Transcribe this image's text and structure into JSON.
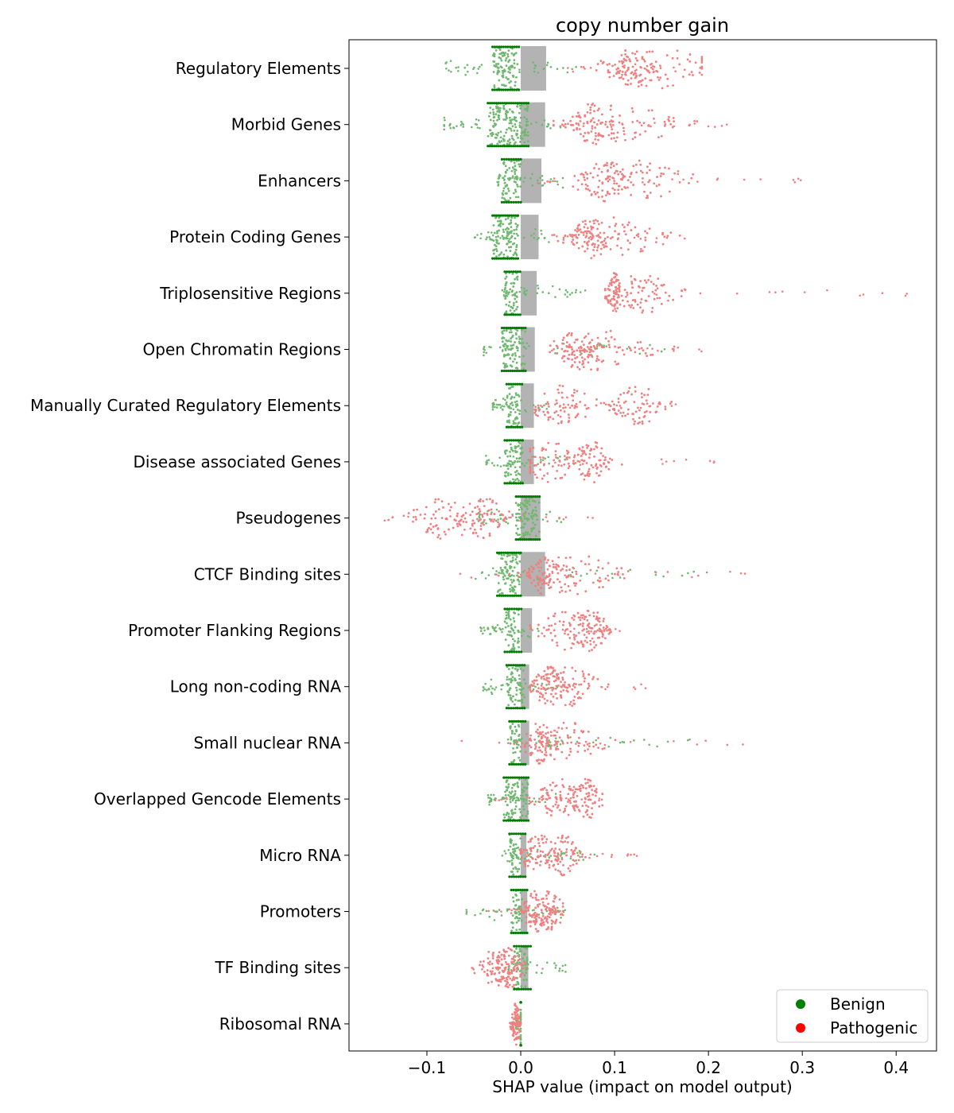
{
  "chart_data": {
    "type": "scatter",
    "subtype": "beeswarm",
    "title": "copy number gain",
    "xlabel": "SHAP value (impact on model output)",
    "ylabel": "",
    "xlim": [
      -0.183,
      0.443
    ],
    "xticks": [
      -0.1,
      0.0,
      0.1,
      0.2,
      0.3,
      0.4
    ],
    "xtick_labels": [
      "−0.1",
      "0.0",
      "0.1",
      "0.2",
      "0.3",
      "0.4"
    ],
    "grid": false,
    "legend": {
      "placement": "lower-right",
      "entries": [
        {
          "name": "Benign",
          "color": "#008000"
        },
        {
          "name": "Pathogenic",
          "color": "#ff0000"
        }
      ]
    },
    "colors": {
      "benign_point": "#6fb86f",
      "benign_core": "#007a00",
      "pathogenic_point": "#f08080",
      "pathogenic_core": "#dd0000",
      "mean_bar": "#b3b3b3"
    },
    "categories": [
      {
        "name": "Regulatory Elements",
        "mean_abs_shap": 0.027,
        "benign": {
          "core": [
            -0.03,
            -0.002
          ],
          "spread": [
            -0.08,
            0.06
          ],
          "mode": -0.015
        },
        "pathogenic": {
          "clusters": [
            [
              0.117,
              0.012
            ],
            [
              0.15,
              0.04
            ]
          ],
          "spread": [
            0.05,
            0.193
          ]
        }
      },
      {
        "name": "Morbid Genes",
        "mean_abs_shap": 0.026,
        "benign": {
          "core": [
            -0.035,
            0.008
          ],
          "spread": [
            -0.082,
            0.045
          ],
          "mode": -0.012
        },
        "pathogenic": {
          "clusters": [
            [
              0.075,
              0.012
            ],
            [
              0.11,
              0.035
            ]
          ],
          "spread": [
            0.035,
            0.22
          ]
        }
      },
      {
        "name": "Enhancers",
        "mean_abs_shap": 0.022,
        "benign": {
          "core": [
            -0.02,
            0.0
          ],
          "spread": [
            -0.025,
            0.045
          ],
          "mode": -0.01
        },
        "pathogenic": {
          "clusters": [
            [
              0.09,
              0.015
            ],
            [
              0.12,
              0.04
            ]
          ],
          "spread": [
            0.02,
            0.307
          ]
        }
      },
      {
        "name": "Protein Coding Genes",
        "mean_abs_shap": 0.019,
        "benign": {
          "core": [
            -0.03,
            -0.003
          ],
          "spread": [
            -0.05,
            0.03
          ],
          "mode": -0.015
        },
        "pathogenic": {
          "clusters": [
            [
              0.075,
              0.012
            ],
            [
              0.1,
              0.03
            ]
          ],
          "spread": [
            0.03,
            0.205
          ]
        }
      },
      {
        "name": "Triplosensitive Regions",
        "mean_abs_shap": 0.017,
        "benign": {
          "core": [
            -0.017,
            -0.003
          ],
          "spread": [
            -0.02,
            0.07
          ],
          "mode": -0.01
        },
        "pathogenic": {
          "clusters": [
            [
              0.1,
              0.005
            ],
            [
              0.13,
              0.02
            ]
          ],
          "spread": [
            0.09,
            0.415
          ]
        }
      },
      {
        "name": "Open Chromatin Regions",
        "mean_abs_shap": 0.015,
        "benign": {
          "core": [
            -0.02,
            0.005
          ],
          "spread": [
            -0.04,
            0.17
          ],
          "mode": -0.005
        },
        "pathogenic": {
          "clusters": [
            [
              0.06,
              0.012
            ],
            [
              0.08,
              0.03
            ]
          ],
          "spread": [
            0.02,
            0.2
          ]
        }
      },
      {
        "name": "Manually Curated Regulatory Elements",
        "mean_abs_shap": 0.014,
        "benign": {
          "core": [
            -0.015,
            -0.001
          ],
          "spread": [
            -0.03,
            0.03
          ],
          "mode": -0.008
        },
        "pathogenic": {
          "clusters": [
            [
              0.045,
              0.02
            ],
            [
              0.125,
              0.015
            ]
          ],
          "spread": [
            0.015,
            0.166
          ]
        }
      },
      {
        "name": "Disease associated Genes",
        "mean_abs_shap": 0.014,
        "benign": {
          "core": [
            -0.017,
            0.002
          ],
          "spread": [
            -0.037,
            0.06
          ],
          "mode": -0.008
        },
        "pathogenic": {
          "clusters": [
            [
              0.03,
              0.02
            ],
            [
              0.075,
              0.012
            ]
          ],
          "spread": [
            0.01,
            0.215
          ]
        }
      },
      {
        "name": "Pseudogenes",
        "mean_abs_shap": 0.021,
        "benign": {
          "core": [
            -0.005,
            0.02
          ],
          "spread": [
            -0.045,
            0.06
          ],
          "mode": 0.005
        },
        "pathogenic": {
          "clusters": [
            [
              -0.08,
              0.025
            ],
            [
              -0.04,
              0.015
            ]
          ],
          "spread": [
            -0.16,
            0.085
          ]
        }
      },
      {
        "name": "CTCF Binding sites",
        "mean_abs_shap": 0.026,
        "benign": {
          "core": [
            -0.025,
            0.0
          ],
          "spread": [
            -0.05,
            0.2
          ],
          "mode": -0.01
        },
        "pathogenic": {
          "clusters": [
            [
              0.025,
              0.01
            ],
            [
              0.06,
              0.03
            ]
          ],
          "spread": [
            -0.065,
            0.243
          ]
        }
      },
      {
        "name": "Promoter Flanking Regions",
        "mean_abs_shap": 0.012,
        "benign": {
          "core": [
            -0.017,
            -0.002
          ],
          "spread": [
            -0.043,
            0.02
          ],
          "mode": -0.01
        },
        "pathogenic": {
          "clusters": [
            [
              0.075,
              0.012
            ],
            [
              0.05,
              0.02
            ]
          ],
          "spread": [
            0.01,
            0.113
          ]
        }
      },
      {
        "name": "Long non-coding RNA",
        "mean_abs_shap": 0.009,
        "benign": {
          "core": [
            -0.015,
            0.004
          ],
          "spread": [
            -0.04,
            0.04
          ],
          "mode": -0.005
        },
        "pathogenic": {
          "clusters": [
            [
              0.03,
              0.01
            ],
            [
              0.05,
              0.02
            ]
          ],
          "spread": [
            0.01,
            0.138
          ]
        }
      },
      {
        "name": "Small nuclear RNA",
        "mean_abs_shap": 0.009,
        "benign": {
          "core": [
            -0.012,
            0.0
          ],
          "spread": [
            -0.02,
            0.19
          ],
          "mode": -0.006
        },
        "pathogenic": {
          "clusters": [
            [
              0.02,
              0.01
            ],
            [
              0.05,
              0.02
            ]
          ],
          "spread": [
            -0.067,
            0.243
          ]
        }
      },
      {
        "name": "Overlapped Gencode Elements",
        "mean_abs_shap": 0.008,
        "benign": {
          "core": [
            -0.018,
            0.008
          ],
          "spread": [
            -0.035,
            0.04
          ],
          "mode": -0.005
        },
        "pathogenic": {
          "clusters": [
            [
              0.04,
              0.015
            ],
            [
              0.07,
              0.01
            ]
          ],
          "spread": [
            -0.03,
            0.087
          ]
        }
      },
      {
        "name": "Micro RNA",
        "mean_abs_shap": 0.006,
        "benign": {
          "core": [
            -0.012,
            0.0
          ],
          "spread": [
            -0.02,
            0.08
          ],
          "mode": -0.006
        },
        "pathogenic": {
          "clusters": [
            [
              0.02,
              0.012
            ],
            [
              0.045,
              0.012
            ]
          ],
          "spread": [
            0.0,
            0.128
          ]
        }
      },
      {
        "name": "Promoters",
        "mean_abs_shap": 0.007,
        "benign": {
          "core": [
            -0.01,
            0.002
          ],
          "spread": [
            -0.058,
            0.048
          ],
          "mode": -0.004
        },
        "pathogenic": {
          "clusters": [
            [
              0.016,
              0.008
            ],
            [
              0.03,
              0.01
            ]
          ],
          "spread": [
            -0.04,
            0.045
          ]
        }
      },
      {
        "name": "TF Binding sites",
        "mean_abs_shap": 0.008,
        "benign": {
          "core": [
            -0.007,
            0.008
          ],
          "spread": [
            -0.015,
            0.05
          ],
          "mode": 0.0
        },
        "pathogenic": {
          "clusters": [
            [
              -0.025,
              0.012
            ],
            [
              -0.012,
              0.008
            ]
          ],
          "spread": [
            -0.053,
            0.03
          ]
        }
      },
      {
        "name": "Ribosomal RNA",
        "mean_abs_shap": 0.0,
        "benign": {
          "core": [
            0.0,
            0.0
          ],
          "spread": [
            -0.005,
            0.0
          ],
          "mode": 0.0
        },
        "pathogenic": {
          "clusters": [
            [
              -0.005,
              0.003
            ]
          ],
          "spread": [
            -0.012,
            0.0
          ]
        }
      }
    ]
  }
}
